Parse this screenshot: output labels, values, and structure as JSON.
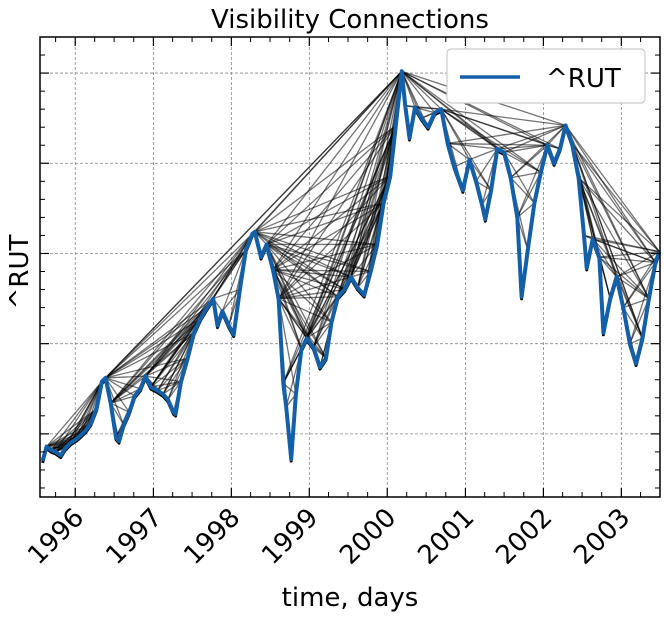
{
  "chart_data": {
    "type": "line",
    "title": "Visibility Connections",
    "xlabel": "time, days",
    "ylabel": "^RUT",
    "x_ticks": [
      "1996",
      "1997",
      "1998",
      "1999",
      "2000",
      "2001",
      "2002",
      "2003"
    ],
    "xlim": [
      "1995-07-20",
      "2003-07-01"
    ],
    "ylim": [
      315,
      570
    ],
    "yticks_labeled": false,
    "grid": true,
    "legend": {
      "position": "top-right",
      "entries": [
        "^RUT"
      ]
    },
    "colors": {
      "series": "#1460a8",
      "visibility_edges": "#000000"
    },
    "series": [
      {
        "name": "^RUT",
        "x": [
          "1995-08-01",
          "1995-08-20",
          "1995-09-10",
          "1995-10-01",
          "1995-10-25",
          "1995-11-15",
          "1995-12-10",
          "1996-01-05",
          "1996-01-25",
          "1996-02-20",
          "1996-03-15",
          "1996-04-10",
          "1996-05-05",
          "1996-05-22",
          "1996-06-15",
          "1996-07-10",
          "1996-07-24",
          "1996-08-15",
          "1996-09-10",
          "1996-10-05",
          "1996-11-01",
          "1996-11-25",
          "1996-12-20",
          "1997-01-20",
          "1997-02-15",
          "1997-03-10",
          "1997-04-05",
          "1997-04-15",
          "1997-05-10",
          "1997-06-10",
          "1997-07-10",
          "1997-08-10",
          "1997-09-10",
          "1997-10-08",
          "1997-10-28",
          "1997-11-20",
          "1997-12-20",
          "1998-01-12",
          "1998-02-10",
          "1998-03-10",
          "1998-04-10",
          "1998-04-21",
          "1998-05-20",
          "1998-06-15",
          "1998-07-15",
          "1998-08-10",
          "1998-09-01",
          "1998-09-15",
          "1998-10-08",
          "1998-10-30",
          "1998-11-25",
          "1998-12-20",
          "1999-01-20",
          "1999-02-20",
          "1999-03-20",
          "1999-04-15",
          "1999-05-15",
          "1999-06-15",
          "1999-07-15",
          "1999-08-15",
          "1999-09-15",
          "1999-10-15",
          "1999-11-15",
          "1999-12-15",
          "2000-01-15",
          "2000-02-10",
          "2000-03-09",
          "2000-03-25",
          "2000-04-14",
          "2000-05-10",
          "2000-06-10",
          "2000-07-10",
          "2000-08-10",
          "2000-09-10",
          "2000-10-10",
          "2000-11-10",
          "2000-12-20",
          "2001-01-20",
          "2001-02-20",
          "2001-03-20",
          "2001-04-04",
          "2001-05-01",
          "2001-05-30",
          "2001-07-01",
          "2001-08-01",
          "2001-09-01",
          "2001-09-21",
          "2001-10-20",
          "2001-11-20",
          "2001-12-20",
          "2002-01-20",
          "2002-02-20",
          "2002-03-20",
          "2002-04-15",
          "2002-05-15",
          "2002-06-15",
          "2002-07-10",
          "2002-07-23",
          "2002-08-20",
          "2002-09-20",
          "2002-10-09",
          "2002-11-10",
          "2002-12-10",
          "2003-01-10",
          "2003-02-10",
          "2003-03-11",
          "2003-04-10",
          "2003-05-10",
          "2003-06-10",
          "2003-06-28"
        ],
        "values": [
          335,
          343,
          341,
          340,
          338,
          342,
          345,
          347,
          349,
          352,
          356,
          364,
          379,
          381,
          367,
          348,
          346,
          355,
          362,
          371,
          375,
          382,
          376,
          374,
          372,
          369,
          362,
          361,
          379,
          392,
          406,
          414,
          420,
          425,
          410,
          418,
          410,
          405,
          430,
          452,
          461,
          462,
          448,
          455,
          441,
          425,
          378,
          365,
          336,
          372,
          397,
          403,
          398,
          387,
          392,
          412,
          426,
          430,
          437,
          431,
          427,
          440,
          455,
          478,
          493,
          521,
          551,
          532,
          514,
          531,
          525,
          520,
          528,
          530,
          511,
          498,
          485,
          502,
          490,
          477,
          469,
          485,
          508,
          506,
          492,
          470,
          426,
          452,
          478,
          495,
          510,
          500,
          508,
          521,
          511,
          492,
          460,
          442,
          458,
          448,
          406,
          425,
          437,
          420,
          400,
          389,
          403,
          425,
          445,
          451
        ]
      }
    ]
  }
}
